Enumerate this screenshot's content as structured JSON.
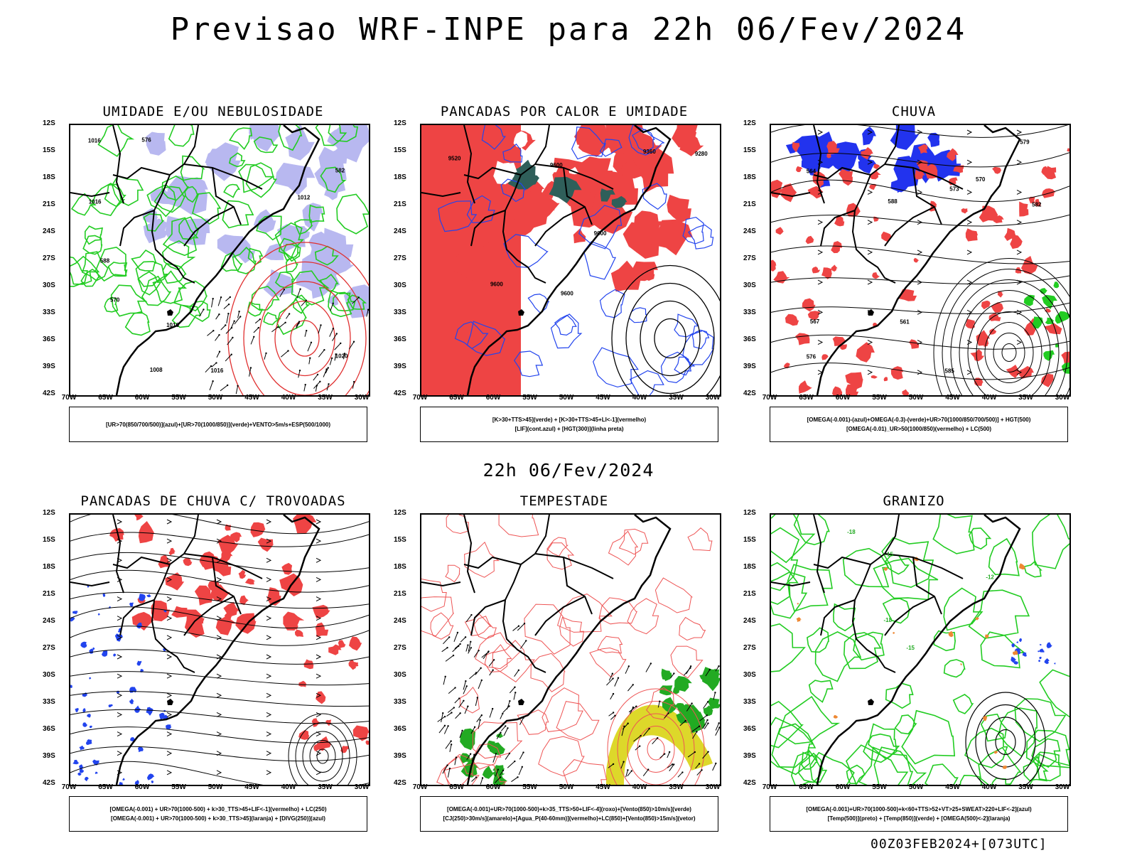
{
  "header": {
    "title": "Previsao WRF-INPE  para 22h 06/Fev/2024",
    "subtitle": "22h 06/Fev/2024"
  },
  "footer": {
    "run": "00Z03FEB2024+[073UTC]"
  },
  "axes": {
    "lat": [
      "12S",
      "15S",
      "18S",
      "21S",
      "24S",
      "27S",
      "30S",
      "33S",
      "36S",
      "39S",
      "42S"
    ],
    "lon": [
      "70W",
      "65W",
      "60W",
      "55W",
      "50W",
      "45W",
      "40W",
      "35W",
      "30W"
    ]
  },
  "panels": [
    {
      "id": "umidade",
      "title": "UMIDADE E/OU NEBULOSIDADE",
      "legend": [
        "[UR>70(850/700/500)](azul)+[UR>70(1000/850)](verde)+VENTO>5m/s+ESP(500/1000)"
      ],
      "labels": [
        "1012",
        "1016",
        "1016",
        "1016",
        "1016",
        "1020",
        "1008",
        "570",
        "576",
        "582",
        "588"
      ]
    },
    {
      "id": "pancadas-calor",
      "title": "PANCADAS POR CALOR E UMIDADE",
      "legend": [
        "[K>30+TTS>45](verde)  +  [K>30+TTS>45+LI<-1](vermelho)",
        "[LIF](cont.azul)  +  [HGT(300)](linha preta)"
      ],
      "labels": [
        "9600",
        "9600",
        "9600",
        "9600",
        "9520",
        "9360",
        "9280"
      ]
    },
    {
      "id": "chuva",
      "title": "CHUVA",
      "legend": [
        "[OMEGA(-0.001)-(azul)+OMEGA(-0.3)-(verde)+UR>70(1000/850/700/500)]  +  HGT(500)",
        "[OMEGA(-0.01)_UR>50(1000/850)(vermelho)  +  LC(500)"
      ],
      "labels": [
        "585",
        "588",
        "582",
        "579",
        "576",
        "573",
        "570",
        "567",
        "564",
        "561"
      ]
    },
    {
      "id": "pancadas-trovoadas",
      "title": "PANCADAS DE CHUVA C/ TROVOADAS",
      "legend": [
        "[OMEGA(-0.001)  +  UR>70(1000-500)  +  k>30_TTS>45+LIF<-1](vermelho)  +  LC(250)",
        "[OMEGA(-0.001)  +  UR>70(1000-500)  +  k>30_TTS>45](laranja)  +  [DIVG(250)](azul)"
      ],
      "labels": []
    },
    {
      "id": "tempestade",
      "title": "TEMPESTADE",
      "legend": [
        "[OMEGA(-0.001)+UR>70(1000-500)+k>35_TTS>50+LIF<-4](roxo)+[Vento(850)>10m/s](verde)",
        "[CJ(250)>30m/s](amarelo)+[Agua_P(40-60mm)](vermelho)+LC(850)+[Vento(850)>15m/s](vetor)"
      ],
      "labels": []
    },
    {
      "id": "granizo",
      "title": "GRANIZO",
      "legend": [
        "[OMEGA(-0.001)+UR>70(1000-500)+k<60+TTS>52+VT>25+SWEAT>220+LIF<-2](azul)",
        "[Temp(500)](preto)  +  [Temp(850)](verde)  +  [OMEGA(500)<-2](laranja)"
      ],
      "labels": [
        "-12",
        "-15",
        "-15",
        "-18",
        "-18"
      ]
    }
  ]
}
